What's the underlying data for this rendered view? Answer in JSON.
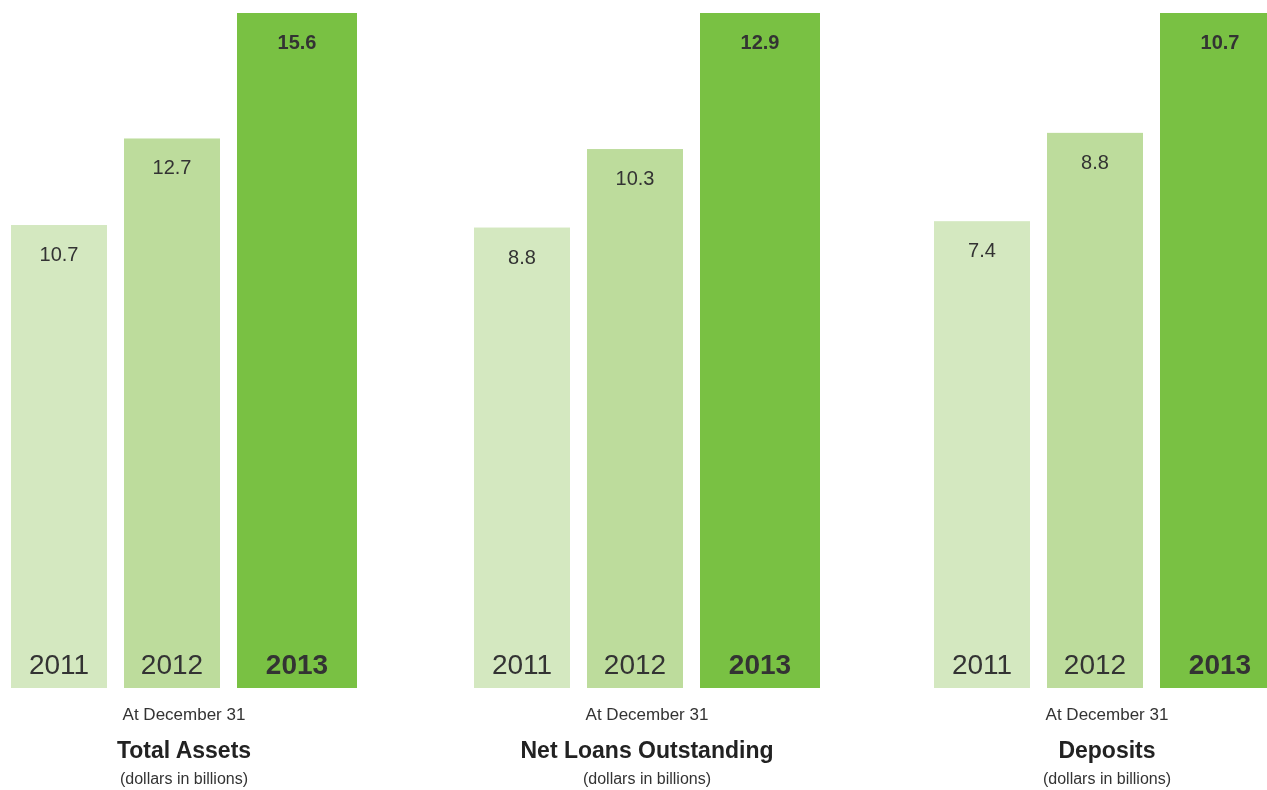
{
  "chart_data": [
    {
      "type": "bar",
      "title": "Total Assets",
      "subtitle": "(dollars in billions)",
      "annotations": [
        "At December 31"
      ],
      "categories": [
        "2011",
        "2012",
        "2013"
      ],
      "values": [
        10.7,
        12.7,
        15.6
      ],
      "colors": [
        "#d4e8c0",
        "#bddc9c",
        "#79c143"
      ],
      "data_labels": true
    },
    {
      "type": "bar",
      "title": "Net Loans Outstanding",
      "subtitle": "(dollars in billions)",
      "annotations": [
        "At December 31"
      ],
      "categories": [
        "2011",
        "2012",
        "2013"
      ],
      "values": [
        8.8,
        10.3,
        12.9
      ],
      "colors": [
        "#d4e8c0",
        "#bddc9c",
        "#79c143"
      ],
      "data_labels": true
    },
    {
      "type": "bar",
      "title": "Deposits",
      "subtitle": "(dollars in billions)",
      "annotations": [
        "At December 31"
      ],
      "categories": [
        "2011",
        "2012",
        "2013"
      ],
      "values": [
        7.4,
        8.8,
        10.7
      ],
      "colors": [
        "#d4e8c0",
        "#bddc9c",
        "#79c143"
      ],
      "data_labels": true
    }
  ]
}
